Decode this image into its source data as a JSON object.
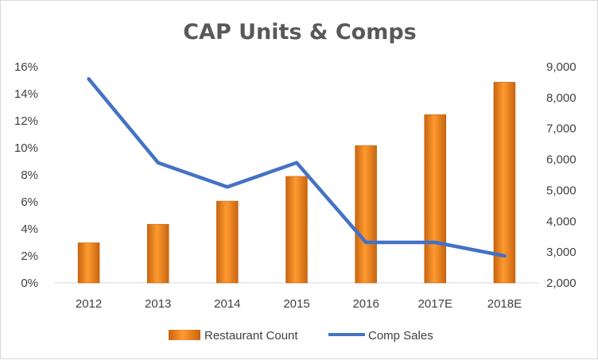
{
  "chart_data": {
    "type": "bar",
    "title": "CAP Units & Comps",
    "categories": [
      "2012",
      "2013",
      "2014",
      "2015",
      "2016",
      "2017E",
      "2018E"
    ],
    "series": [
      {
        "name": "Restaurant Count",
        "type": "bar",
        "axis": "right",
        "values": [
          3300,
          3900,
          4650,
          5450,
          6450,
          7450,
          8500
        ],
        "color": "#F28A1E"
      },
      {
        "name": "Comp Sales",
        "type": "line",
        "axis": "left",
        "values": [
          0.151,
          0.089,
          0.071,
          0.089,
          0.03,
          0.03,
          0.02
        ],
        "color": "#4472C4"
      }
    ],
    "y_left": {
      "ylim": [
        0,
        0.16
      ],
      "ticks": [
        0,
        0.02,
        0.04,
        0.06,
        0.08,
        0.1,
        0.12,
        0.14,
        0.16
      ],
      "tick_labels": [
        "0%",
        "2%",
        "4%",
        "6%",
        "8%",
        "10%",
        "12%",
        "14%",
        "16%"
      ]
    },
    "y_right": {
      "ylim": [
        2000,
        9000
      ],
      "ticks": [
        2000,
        3000,
        4000,
        5000,
        6000,
        7000,
        8000,
        9000
      ],
      "tick_labels": [
        "2,000",
        "3,000",
        "4,000",
        "5,000",
        "6,000",
        "7,000",
        "8,000",
        "9,000"
      ]
    },
    "grid": false,
    "legend": "bottom"
  }
}
